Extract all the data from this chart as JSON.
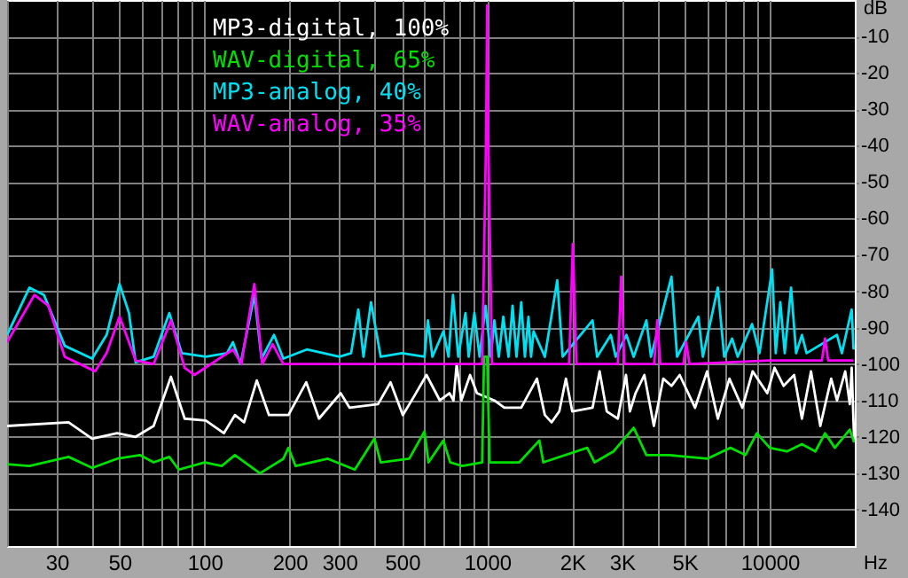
{
  "chart_data": {
    "type": "line",
    "xlabel": "Hz",
    "ylabel": "dB",
    "log": "x",
    "grid": true,
    "legend": "top left",
    "line_style": "solid",
    "marker": "none",
    "xlim": [
      20,
      20000
    ],
    "xticks": [
      {
        "value": 20,
        "label": null
      },
      30,
      {
        "value": 40,
        "label": null
      },
      50,
      {
        "value": 60,
        "label": null
      },
      {
        "value": 70,
        "label": null
      },
      {
        "value": 80,
        "label": null
      },
      {
        "value": 90,
        "label": null
      },
      100,
      200,
      300,
      {
        "value": 400,
        "label": null
      },
      500,
      {
        "value": 600,
        "label": null
      },
      {
        "value": 700,
        "label": null
      },
      {
        "value": 800,
        "label": null
      },
      {
        "value": 900,
        "label": null
      },
      1000,
      {
        "value": 2000,
        "label": "2K"
      },
      {
        "value": 3000,
        "label": "3K"
      },
      {
        "value": 4000,
        "label": null
      },
      {
        "value": 5000,
        "label": "5K"
      },
      {
        "value": 6000,
        "label": null
      },
      {
        "value": 7000,
        "label": null
      },
      {
        "value": 8000,
        "label": null
      },
      {
        "value": 9000,
        "label": null
      },
      10000,
      {
        "value": 20000,
        "label": null
      }
    ],
    "ylim": [
      -150,
      0
    ],
    "yticks": [
      -140,
      -130,
      -120,
      -110,
      -100,
      -90,
      -80,
      -70,
      -60,
      -50,
      -40,
      -30,
      -20,
      -10
    ],
    "series": [
      {
        "name": "MP3-digital, 100%",
        "color": "#ffffff",
        "x": [
          20,
          33,
          40,
          49,
          57,
          66,
          76,
          85,
          101,
          117,
          128,
          138,
          153,
          169,
          198,
          229,
          254,
          303,
          326,
          411,
          455,
          503,
          550,
          610,
          680,
          735,
          760,
          780,
          810,
          870,
          920,
          1060,
          1150,
          1320,
          1500,
          1600,
          1690,
          1800,
          1900,
          2000,
          2360,
          2500,
          2650,
          2900,
          3100,
          3200,
          3350,
          3600,
          3890,
          4200,
          4490,
          4800,
          5440,
          6000,
          6550,
          7200,
          8000,
          8700,
          9800,
          10400,
          11200,
          12200,
          13000,
          14000,
          15100,
          16500,
          17300,
          18500,
          19200,
          19500,
          19900
        ],
        "values": [
          -117,
          -116,
          -120.5,
          -119,
          -120,
          -117,
          -103.5,
          -115,
          -115.5,
          -119,
          -114,
          -116,
          -104.5,
          -114,
          -114,
          -105,
          -115,
          -108,
          -112,
          -111,
          -105,
          -114,
          -109,
          -103,
          -110,
          -108,
          -110,
          -100,
          -110,
          -103,
          -108,
          -110,
          -112,
          -112,
          -104,
          -114,
          -116,
          -113,
          -104,
          -113,
          -112,
          -102,
          -113,
          -115,
          -103,
          -113,
          -108,
          -103,
          -117,
          -104,
          -106,
          -103,
          -112,
          -102,
          -115,
          -104,
          -112,
          -102,
          -108,
          -101,
          -106,
          -103,
          -115,
          -102,
          -117,
          -104,
          -110,
          -102,
          -111,
          -101,
          -121.5
        ]
      },
      {
        "name": "WAV-digital, 65%",
        "color": "#00e000",
        "x": [
          20,
          24,
          33,
          40,
          49,
          59,
          66,
          75,
          81,
          100,
          115,
          128,
          157,
          190,
          198,
          210,
          273,
          340,
          399,
          420,
          530,
          600,
          620,
          700,
          740,
          815,
          960,
          975,
          1000,
          1020,
          1300,
          1530,
          1580,
          2260,
          2400,
          2800,
          3300,
          3660,
          4400,
          6010,
          7260,
          8200,
          9000,
          10000,
          11500,
          13000,
          14500,
          15700,
          17000,
          19200,
          19900
        ],
        "values": [
          -127.5,
          -128,
          -125.5,
          -128.5,
          -126,
          -125,
          -127,
          -125.5,
          -129,
          -127,
          -128,
          -125,
          -130,
          -126,
          -123,
          -128,
          -126,
          -129,
          -120.5,
          -127,
          -126,
          -118.5,
          -127,
          -121,
          -127,
          -128,
          -127,
          -98,
          -98,
          -127,
          -127,
          -121,
          -127,
          -123,
          -127,
          -124,
          -117.5,
          -125,
          -125,
          -126,
          -123,
          -125,
          -119,
          -123,
          -124,
          -122,
          -124,
          -119,
          -123,
          -118,
          -121.5
        ]
      },
      {
        "name": "MP3-analog, 40%",
        "color": "#00e0f0",
        "x": [
          20,
          24,
          27,
          32,
          40,
          45,
          50,
          54,
          57,
          66,
          75,
          83,
          101,
          120,
          126,
          134,
          150,
          159,
          176,
          190,
          230,
          300,
          330,
          350,
          365,
          388,
          420,
          500,
          600,
          617,
          640,
          700,
          730,
          757,
          790,
          838,
          860,
          901,
          940,
          987,
          1030,
          1060,
          1100,
          1140,
          1190,
          1230,
          1270,
          1320,
          1360,
          1400,
          1430,
          1460,
          1600,
          1770,
          1850,
          2360,
          2450,
          2740,
          2850,
          3110,
          3300,
          3660,
          3800,
          4490,
          4700,
          5590,
          5800,
          6550,
          6900,
          7360,
          7700,
          8660,
          9200,
          10200,
          10500,
          10900,
          11300,
          11900,
          12400,
          13000,
          13500,
          17300,
          18000,
          19500,
          19800
        ],
        "values": [
          -92,
          -79,
          -81,
          -95,
          -98.5,
          -92,
          -78,
          -86,
          -99.5,
          -98,
          -86,
          -97,
          -98,
          -97,
          -94,
          -100,
          -81,
          -98.5,
          -92,
          -98.5,
          -96,
          -98,
          -97,
          -85,
          -98,
          -83,
          -98,
          -97,
          -98,
          -88,
          -98,
          -91,
          -98,
          -81,
          -98,
          -86,
          -98,
          -86,
          -98,
          -84,
          -98,
          -88,
          -98,
          -87,
          -98,
          -84,
          -98,
          -83,
          -98,
          -87,
          -98,
          -91,
          -98,
          -77,
          -98,
          -88,
          -98,
          -92,
          -98,
          -92,
          -98,
          -88,
          -98,
          -76,
          -98,
          -87,
          -98,
          -79,
          -98,
          -93,
          -98,
          -89,
          -97,
          -74,
          -97,
          -83,
          -97,
          -79,
          -97,
          -92,
          -97,
          -92,
          -97,
          -85,
          -96
        ]
      },
      {
        "name": "WAV-analog, 35%",
        "color": "#ff00ff",
        "x": [
          20,
          25,
          28,
          32,
          41,
          45,
          50,
          54,
          57,
          66,
          76,
          85,
          92,
          110,
          126,
          135,
          150,
          160,
          174,
          190,
          300,
          600,
          960,
          990,
          1000,
          1010,
          1040,
          1500,
          1950,
          2010,
          2070,
          2900,
          2980,
          3060,
          3900,
          4000,
          4100,
          4950,
          5060,
          5200,
          10000,
          15300,
          15700,
          16100,
          19800
        ],
        "values": [
          -94,
          -81,
          -84,
          -98,
          -102,
          -97,
          -87,
          -94,
          -99,
          -100,
          -88,
          -101,
          -103,
          -99,
          -96,
          -100,
          -78,
          -100,
          -94.5,
          -100,
          -100,
          -100,
          -100,
          -40,
          -1.5,
          -40,
          -100,
          -100,
          -100,
          -67,
          -100,
          -100,
          -76,
          -100,
          -100,
          -88,
          -100,
          -100,
          -94,
          -100,
          -99,
          -99,
          -93,
          -99,
          -99
        ]
      }
    ]
  }
}
